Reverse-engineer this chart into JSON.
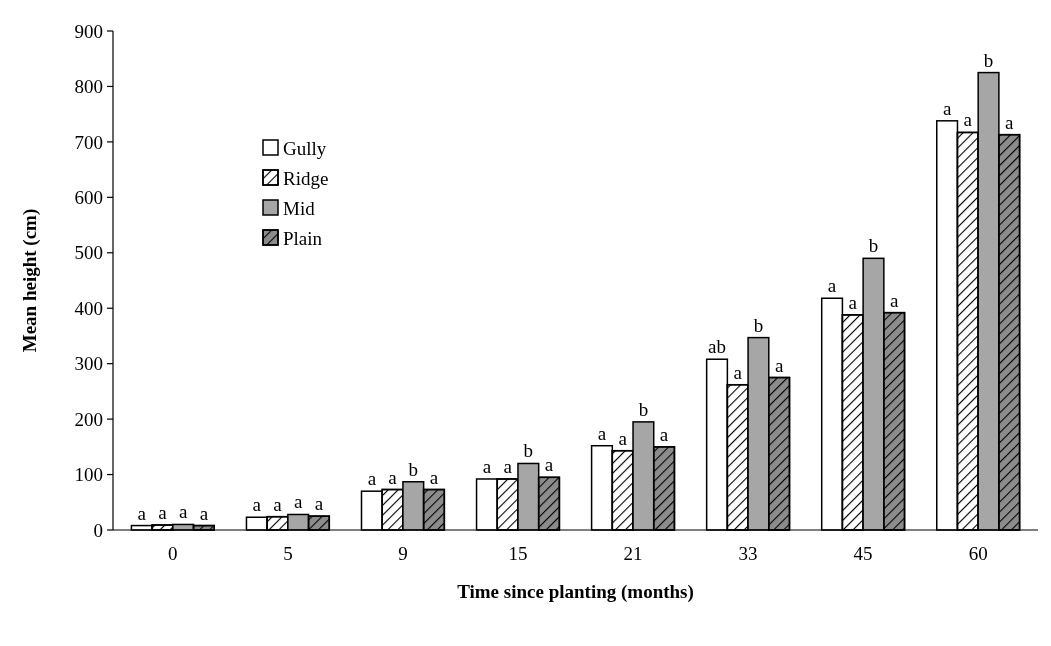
{
  "chart_data": {
    "type": "bar",
    "xlabel": "Time since planting (months)",
    "ylabel": "Mean height (cm)",
    "categories": [
      "0",
      "5",
      "9",
      "15",
      "21",
      "33",
      "45",
      "60"
    ],
    "series": [
      {
        "name": "Gully",
        "color": "#ffffff",
        "values": [
          8,
          23,
          70,
          92,
          152,
          308,
          418,
          738
        ],
        "value_labels": [
          "a",
          "a",
          "a",
          "a",
          "a",
          "ab",
          "a",
          "a"
        ]
      },
      {
        "name": "Ridge",
        "color": "#ffffff",
        "values": [
          9,
          24,
          73,
          92,
          143,
          262,
          388,
          717
        ],
        "value_labels": [
          "a",
          "a",
          "a",
          "a",
          "a",
          "a",
          "a",
          "a"
        ]
      },
      {
        "name": "Mid",
        "color": "#a6a6a6",
        "values": [
          10,
          28,
          87,
          120,
          195,
          347,
          490,
          825
        ],
        "value_labels": [
          "a",
          "a",
          "b",
          "b",
          "b",
          "b",
          "b",
          "b"
        ]
      },
      {
        "name": "Plain",
        "color": "#8c8c8c",
        "values": [
          8,
          25,
          73,
          95,
          150,
          275,
          392,
          713
        ],
        "value_labels": [
          "a",
          "a",
          "a",
          "a",
          "a",
          "a",
          "a",
          "a"
        ]
      }
    ],
    "ylim": [
      0,
      900
    ],
    "yticks": [
      0,
      100,
      200,
      300,
      400,
      500,
      600,
      700,
      800,
      900
    ],
    "grid": false,
    "legend": "top left"
  }
}
